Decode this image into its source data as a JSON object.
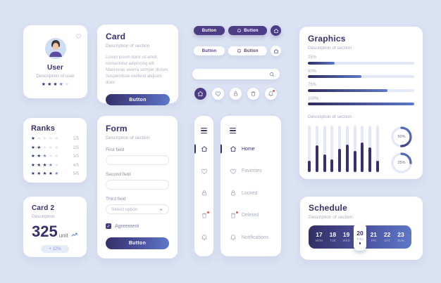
{
  "colors": {
    "background": "#dbe2f3",
    "card": "#ffffff",
    "heading": "#37306b",
    "muted": "#a8abbc",
    "purple_solid": "#4c3d85",
    "gradient_start": "#332e63",
    "gradient_end": "#5d78c9",
    "track": "#e4e8f6",
    "star_filled": "#2e3470",
    "star_accent": "#7388d0",
    "star_empty": "#dfe4f2",
    "notification_red": "#e2574c"
  },
  "user_card": {
    "title": "User",
    "description": "Description of user",
    "rating": 4,
    "rating_max": 5
  },
  "card": {
    "title": "Card",
    "description": "Description of section",
    "body": "Lorem ipsum dolor sit amet, consectetur adipiscing elit. Maecenas viverra semper dictum. Suspendisse eleifend aliquam dolor.",
    "button_label": "Button"
  },
  "buttons": {
    "primary_label": "Button",
    "primary_icon_label": "Button",
    "secondary_label": "Button",
    "secondary_icon_label": "Button"
  },
  "ranks": {
    "title": "Ranks",
    "rows": [
      {
        "stars": 1,
        "label": "1/5"
      },
      {
        "stars": 2,
        "label": "2/5"
      },
      {
        "stars": 3,
        "label": "3/5"
      },
      {
        "stars": 4,
        "label": "4/5"
      },
      {
        "stars": 5,
        "label": "5/5"
      }
    ]
  },
  "form": {
    "title": "Form",
    "description": "Description of section",
    "fields": [
      {
        "label": "First field",
        "value": ""
      },
      {
        "label": "Second field",
        "value": ""
      },
      {
        "label": "Third field",
        "value": "Select option",
        "type": "select"
      }
    ],
    "checkbox_label": "Agreement",
    "checkbox_checked": true,
    "check_glyph": "✓",
    "button_label": "Button"
  },
  "card2": {
    "title": "Card 2",
    "description": "Description",
    "value": "325",
    "unit": "unit",
    "badge": "+ 12%"
  },
  "sidebar": {
    "items": [
      {
        "icon": "home-icon",
        "label": "Home",
        "active": true
      },
      {
        "icon": "heart-icon",
        "label": "Favorites",
        "active": false
      },
      {
        "icon": "lock-icon",
        "label": "Locked",
        "active": false
      },
      {
        "icon": "trash-icon",
        "label": "Deleted",
        "active": false,
        "badge": true
      },
      {
        "icon": "bell-icon",
        "label": "Notifications",
        "active": false
      }
    ]
  },
  "graphics": {
    "title": "Graphics",
    "description": "Description of section",
    "progress": [
      {
        "label": "25%",
        "value": 25
      },
      {
        "label": "50%",
        "value": 50
      },
      {
        "label": "75%",
        "value": 75
      },
      {
        "label": "100%",
        "value": 100
      }
    ],
    "section2_description": "Description of section",
    "chart": {
      "type": "bar",
      "values": [
        25,
        58,
        38,
        28,
        50,
        59,
        46,
        63,
        53,
        24
      ],
      "ylim": [
        0,
        100
      ]
    },
    "donuts": [
      {
        "label": "50%",
        "value": 50
      },
      {
        "label": "25%",
        "value": 25
      }
    ]
  },
  "schedule": {
    "title": "Schedule",
    "description": "Description of section",
    "days": [
      {
        "date": "17",
        "day": "MON",
        "selected": false
      },
      {
        "date": "18",
        "day": "TUE",
        "selected": false
      },
      {
        "date": "19",
        "day": "WED",
        "selected": false
      },
      {
        "date": "20",
        "day": "THU",
        "selected": true
      },
      {
        "date": "21",
        "day": "FRI",
        "selected": false
      },
      {
        "date": "22",
        "day": "SAT",
        "selected": false
      },
      {
        "date": "23",
        "day": "SUN",
        "selected": false
      }
    ]
  }
}
